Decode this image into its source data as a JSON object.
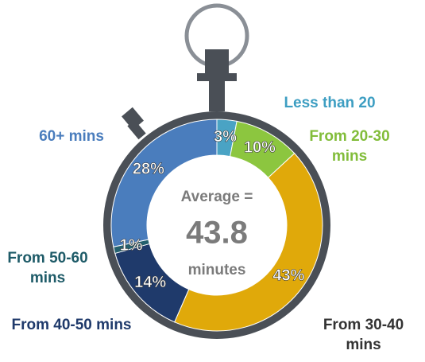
{
  "chart_data": {
    "type": "donut",
    "categories": [
      "Less than 20",
      "From 20-30 mins",
      "From 30-40 mins",
      "From 40-50 mins",
      "From 50-60 mins",
      "60+ mins"
    ],
    "values": [
      3,
      10,
      43,
      14,
      1,
      28
    ],
    "value_labels": [
      "3%",
      "10%",
      "43%",
      "14%",
      "1%",
      "28%"
    ],
    "colors": [
      "#4aa3c4",
      "#8cc63f",
      "#e0a90a",
      "#1f3a6b",
      "#24606e",
      "#4a7dbd"
    ],
    "label_colors": [
      "#3d9ec2",
      "#82bd3a",
      "#333333",
      "#1f3a6b",
      "#1e5b68",
      "#4a7dbd"
    ],
    "center_text": [
      "Average =",
      "43.8",
      "minutes"
    ]
  }
}
